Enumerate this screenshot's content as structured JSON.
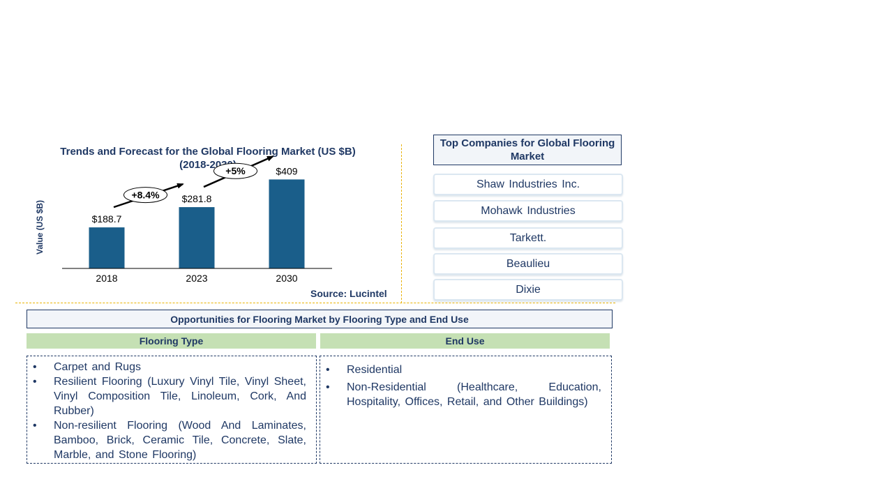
{
  "chart_data": {
    "type": "bar",
    "title": "Trends and Forecast for the Global Flooring Market (US $B)",
    "subtitle": "(2018-2030)",
    "ylabel": "Value (US $B)",
    "xlabel": "",
    "categories": [
      "2018",
      "2023",
      "2030"
    ],
    "values": [
      188.7,
      281.8,
      409
    ],
    "data_labels": [
      "$188.7",
      "$281.8",
      "$409"
    ],
    "growth_annotations": [
      {
        "label": "+8.4%",
        "from": "2018",
        "to": "2023"
      },
      {
        "label": "+5%",
        "from": "2023",
        "to": "2030"
      }
    ],
    "ylim": [
      0,
      500
    ],
    "grid": false,
    "bar_color": "#1a5e8a",
    "source": "Source: Lucintel"
  },
  "companies": {
    "header": "Top Companies for Global Flooring Market",
    "items": [
      "Shaw Industries Inc.",
      "Mohawk Industries",
      "Tarkett.",
      "Beaulieu",
      "Dixie"
    ]
  },
  "opportunities": {
    "header": "Opportunities for Flooring Market by Flooring Type and End Use",
    "flooring_type": {
      "heading": "Flooring Type",
      "items": [
        "Carpet and Rugs",
        "Resilient Flooring (Luxury Vinyl Tile, Vinyl Sheet, Vinyl Composition Tile, Linoleum, Cork, And Rubber)",
        "Non-resilient Flooring (Wood And Laminates, Bamboo, Brick, Ceramic Tile, Concrete, Slate, Marble, and Stone Flooring)"
      ]
    },
    "end_use": {
      "heading": "End Use",
      "items": [
        "Residential",
        "Non-Residential (Healthcare, Education, Hospitality, Offices, Retail, and Other Buildings)"
      ]
    }
  },
  "colors": {
    "navy": "#1f3864",
    "bar": "#1a5e8a",
    "column_header_green": "#c5e0b4",
    "separator": "#e9b200"
  }
}
